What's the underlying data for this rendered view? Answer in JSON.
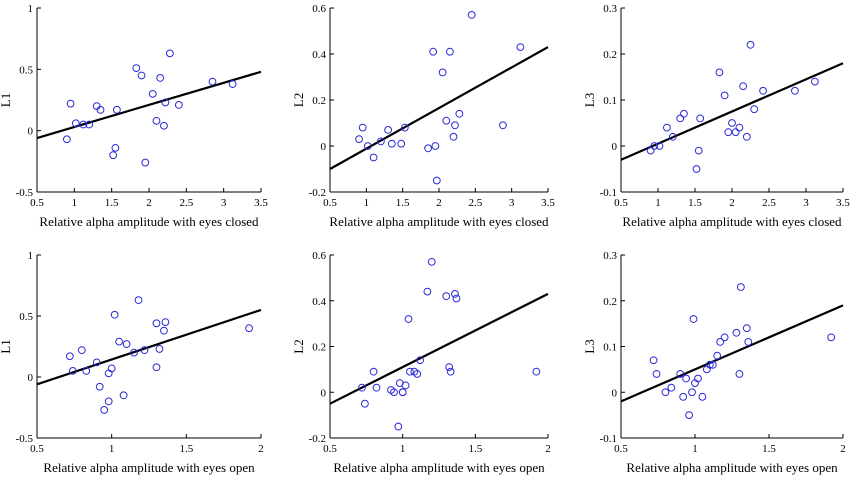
{
  "figure": {
    "colors": {
      "points": "#2b2bd6",
      "line": "#000000",
      "axis": "#000000"
    }
  },
  "chart_data": [
    {
      "type": "scatter",
      "ylabel": "L1",
      "xlabel": "Relative alpha amplitude with eyes closed",
      "xlim": [
        0.5,
        3.5
      ],
      "ylim": [
        -0.5,
        1
      ],
      "xticks": [
        "0.5",
        "1",
        "1.5",
        "2",
        "2.5",
        "3",
        "3.5"
      ],
      "yticks": [
        "-0.5",
        "0",
        "0.5",
        "1"
      ],
      "x": [
        0.9,
        0.95,
        1.02,
        1.12,
        1.2,
        1.3,
        1.35,
        1.52,
        1.55,
        1.57,
        1.83,
        1.9,
        1.95,
        2.05,
        2.1,
        2.15,
        2.2,
        2.22,
        2.28,
        2.4,
        2.85,
        3.12
      ],
      "y": [
        -0.07,
        0.22,
        0.06,
        0.05,
        0.05,
        0.2,
        0.17,
        -0.2,
        -0.14,
        0.17,
        0.51,
        0.45,
        -0.26,
        0.3,
        0.08,
        0.43,
        0.04,
        0.23,
        0.63,
        0.21,
        0.4,
        0.38
      ],
      "fit": {
        "x": [
          0.5,
          3.5
        ],
        "y": [
          -0.06,
          0.48
        ]
      }
    },
    {
      "type": "scatter",
      "ylabel": "L2",
      "xlabel": "Relative alpha amplitude with eyes closed",
      "xlim": [
        0.5,
        3.5
      ],
      "ylim": [
        -0.2,
        0.6
      ],
      "xticks": [
        "0.5",
        "1",
        "1.5",
        "2",
        "2.5",
        "3",
        "3.5"
      ],
      "yticks": [
        "-0.2",
        "0",
        "0.2",
        "0.4",
        "0.6"
      ],
      "x": [
        0.9,
        0.95,
        1.02,
        1.1,
        1.2,
        1.3,
        1.35,
        1.48,
        1.53,
        1.85,
        1.92,
        1.95,
        1.97,
        2.05,
        2.1,
        2.15,
        2.2,
        2.22,
        2.28,
        2.45,
        2.88,
        3.12
      ],
      "y": [
        0.03,
        0.08,
        0.0,
        -0.05,
        0.02,
        0.07,
        0.01,
        0.01,
        0.08,
        -0.01,
        0.41,
        0.0,
        -0.15,
        0.32,
        0.11,
        0.41,
        0.04,
        0.09,
        0.14,
        0.57,
        0.09,
        0.43
      ],
      "fit": {
        "x": [
          0.5,
          3.5
        ],
        "y": [
          -0.1,
          0.43
        ]
      }
    },
    {
      "type": "scatter",
      "ylabel": "L3",
      "xlabel": "Relative alpha amplitude with eyes closed",
      "xlim": [
        0.5,
        3.5
      ],
      "ylim": [
        -0.1,
        0.3
      ],
      "xticks": [
        "0.5",
        "1",
        "1.5",
        "2",
        "2.5",
        "3",
        "3.5"
      ],
      "yticks": [
        "-0.1",
        "0",
        "0.1",
        "0.2",
        "0.3"
      ],
      "x": [
        0.9,
        0.95,
        1.02,
        1.12,
        1.2,
        1.3,
        1.35,
        1.52,
        1.55,
        1.57,
        1.83,
        1.9,
        1.95,
        2.0,
        2.05,
        2.1,
        2.15,
        2.2,
        2.25,
        2.3,
        2.42,
        2.85,
        3.12
      ],
      "y": [
        -0.01,
        0.0,
        0.0,
        0.04,
        0.02,
        0.06,
        0.07,
        -0.05,
        -0.01,
        0.06,
        0.16,
        0.11,
        0.03,
        0.05,
        0.03,
        0.04,
        0.13,
        0.02,
        0.22,
        0.08,
        0.12,
        0.12,
        0.14
      ],
      "fit": {
        "x": [
          0.5,
          3.5
        ],
        "y": [
          -0.03,
          0.18
        ]
      }
    },
    {
      "type": "scatter",
      "ylabel": "L1",
      "xlabel": "Relative alpha amplitude with eyes open",
      "xlim": [
        0.5,
        2
      ],
      "ylim": [
        -0.5,
        1
      ],
      "xticks": [
        "0.5",
        "1",
        "1.5",
        "2"
      ],
      "yticks": [
        "-0.5",
        "0",
        "0.5",
        "1"
      ],
      "x": [
        0.72,
        0.74,
        0.8,
        0.83,
        0.9,
        0.92,
        0.95,
        0.98,
        0.98,
        1.0,
        1.02,
        1.05,
        1.08,
        1.1,
        1.15,
        1.18,
        1.22,
        1.3,
        1.3,
        1.32,
        1.35,
        1.36,
        1.92
      ],
      "y": [
        0.17,
        0.05,
        0.22,
        0.05,
        0.12,
        -0.08,
        -0.27,
        -0.2,
        0.03,
        0.07,
        0.51,
        0.29,
        -0.15,
        0.27,
        0.2,
        0.63,
        0.22,
        0.44,
        0.08,
        0.23,
        0.38,
        0.45,
        0.4
      ],
      "fit": {
        "x": [
          0.5,
          2
        ],
        "y": [
          -0.06,
          0.55
        ]
      }
    },
    {
      "type": "scatter",
      "ylabel": "L2",
      "xlabel": "Relative alpha amplitude with eyes open",
      "xlim": [
        0.5,
        2
      ],
      "ylim": [
        -0.2,
        0.6
      ],
      "xticks": [
        "0.5",
        "1",
        "1.5",
        "2"
      ],
      "yticks": [
        "-0.2",
        "0",
        "0.2",
        "0.4",
        "0.6"
      ],
      "x": [
        0.72,
        0.74,
        0.8,
        0.82,
        0.92,
        0.94,
        0.97,
        0.98,
        1.0,
        1.0,
        1.02,
        1.04,
        1.05,
        1.08,
        1.1,
        1.12,
        1.17,
        1.2,
        1.3,
        1.32,
        1.33,
        1.36,
        1.37,
        1.92
      ],
      "y": [
        0.02,
        -0.05,
        0.09,
        0.02,
        0.01,
        0.0,
        -0.15,
        0.04,
        0.0,
        0.0,
        0.03,
        0.32,
        0.09,
        0.09,
        0.08,
        0.14,
        0.44,
        0.57,
        0.42,
        0.11,
        0.09,
        0.43,
        0.41,
        0.09
      ],
      "fit": {
        "x": [
          0.5,
          2
        ],
        "y": [
          -0.05,
          0.43
        ]
      }
    },
    {
      "type": "scatter",
      "ylabel": "L3",
      "xlabel": "Relative alpha amplitude with eyes open",
      "xlim": [
        0.5,
        2
      ],
      "ylim": [
        -0.1,
        0.3
      ],
      "xticks": [
        "0.5",
        "1",
        "1.5",
        "2"
      ],
      "yticks": [
        "-0.1",
        "0",
        "0.1",
        "0.2",
        "0.3"
      ],
      "x": [
        0.72,
        0.74,
        0.8,
        0.84,
        0.9,
        0.92,
        0.94,
        0.96,
        0.98,
        0.99,
        1.0,
        1.02,
        1.05,
        1.08,
        1.1,
        1.12,
        1.15,
        1.17,
        1.2,
        1.28,
        1.3,
        1.31,
        1.35,
        1.36,
        1.92
      ],
      "y": [
        0.07,
        0.04,
        0.0,
        0.01,
        0.04,
        -0.01,
        0.03,
        -0.05,
        0.0,
        0.16,
        0.02,
        0.03,
        -0.01,
        0.05,
        0.06,
        0.06,
        0.08,
        0.11,
        0.12,
        0.13,
        0.04,
        0.23,
        0.14,
        0.11,
        0.12
      ],
      "fit": {
        "x": [
          0.5,
          2
        ],
        "y": [
          -0.02,
          0.19
        ]
      }
    }
  ]
}
